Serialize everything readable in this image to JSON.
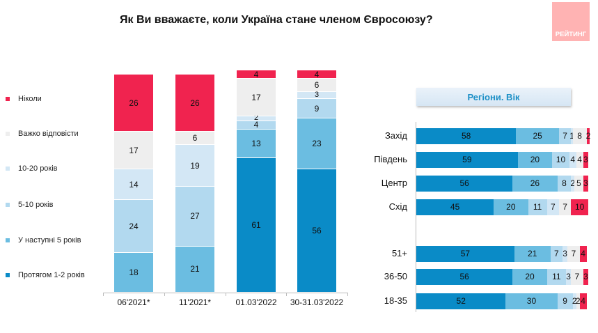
{
  "title": "Як Ви вважаєте, коли Україна стане членом Євросоюзу?",
  "logo_text": "РЕЙТИНГ",
  "colors": {
    "c12": "#0a8bc7",
    "c5": "#6bbde1",
    "c510": "#b2d9ef",
    "c1020": "#d3e7f5",
    "hard": "#eeeeee",
    "never": "#f0234f"
  },
  "chart_data": [
    {
      "type": "bar",
      "stacked": true,
      "unit": "%",
      "legend": [
        {
          "key": "never",
          "label": "Ніколи"
        },
        {
          "key": "hard",
          "label": "Важко відповісти"
        },
        {
          "key": "c1020",
          "label": "10-20 років"
        },
        {
          "key": "c510",
          "label": "5-10 років"
        },
        {
          "key": "c5",
          "label": "У наступні 5 років"
        },
        {
          "key": "c12",
          "label": "Протягом 1-2 років"
        }
      ],
      "categories": [
        "06'2021*",
        "11'2021*",
        "01.03'2022",
        "30-31.03'2022"
      ],
      "series": [
        {
          "key": "c12",
          "name": "Протягом 1-2 років",
          "values": [
            null,
            null,
            61,
            56
          ]
        },
        {
          "key": "c5",
          "name": "У наступні 5 років",
          "values": [
            18,
            21,
            13,
            23
          ]
        },
        {
          "key": "c510",
          "name": "5-10 років",
          "values": [
            24,
            27,
            4,
            9
          ]
        },
        {
          "key": "c1020",
          "name": "10-20 років",
          "values": [
            14,
            19,
            2,
            3
          ]
        },
        {
          "key": "hard",
          "name": "Важко відповісти",
          "values": [
            17,
            6,
            17,
            6
          ]
        },
        {
          "key": "never",
          "name": "Ніколи",
          "values": [
            26,
            26,
            4,
            4
          ]
        }
      ]
    },
    {
      "type": "bar",
      "orientation": "horizontal",
      "stacked": true,
      "title": "Регіони. Вік",
      "categories": [
        "Захід",
        "Південь",
        "Центр",
        "Схід",
        "51+",
        "36-50",
        "18-35"
      ],
      "series_keys": [
        "c12",
        "c5",
        "c510",
        "c1020",
        "hard",
        "never"
      ],
      "values": [
        [
          58,
          25,
          7,
          1,
          8,
          2
        ],
        [
          59,
          20,
          10,
          4,
          4,
          3
        ],
        [
          56,
          26,
          8,
          2,
          5,
          3
        ],
        [
          45,
          20,
          11,
          7,
          7,
          10
        ],
        [
          57,
          21,
          7,
          3,
          7,
          4
        ],
        [
          56,
          20,
          11,
          3,
          7,
          3
        ],
        [
          52,
          30,
          9,
          2,
          2,
          4
        ]
      ]
    }
  ]
}
